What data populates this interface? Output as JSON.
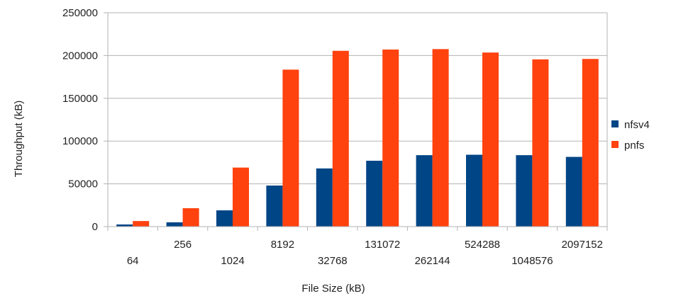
{
  "chart_data": {
    "type": "bar",
    "title": "",
    "xlabel": "File Size (kB)",
    "ylabel": "Throughput (kB)",
    "ylim": [
      0,
      250000
    ],
    "yticks": [
      0,
      50000,
      100000,
      150000,
      200000,
      250000
    ],
    "ytick_labels": [
      "0",
      "50000",
      "100000",
      "150000",
      "200000",
      "250000"
    ],
    "grid": true,
    "legend_position": "right",
    "categories": [
      "64",
      "256",
      "1024",
      "8192",
      "32768",
      "131072",
      "262144",
      "524288",
      "1048576",
      "2097152"
    ],
    "series": [
      {
        "name": "nfsv4",
        "color": "#004586",
        "values": [
          2500,
          5000,
          19000,
          48000,
          68000,
          77000,
          83500,
          84000,
          83500,
          81500
        ]
      },
      {
        "name": "pnfs",
        "color": "#ff420e",
        "values": [
          6500,
          21500,
          69000,
          183500,
          205500,
          207000,
          207500,
          203500,
          195500,
          196000
        ]
      }
    ]
  }
}
